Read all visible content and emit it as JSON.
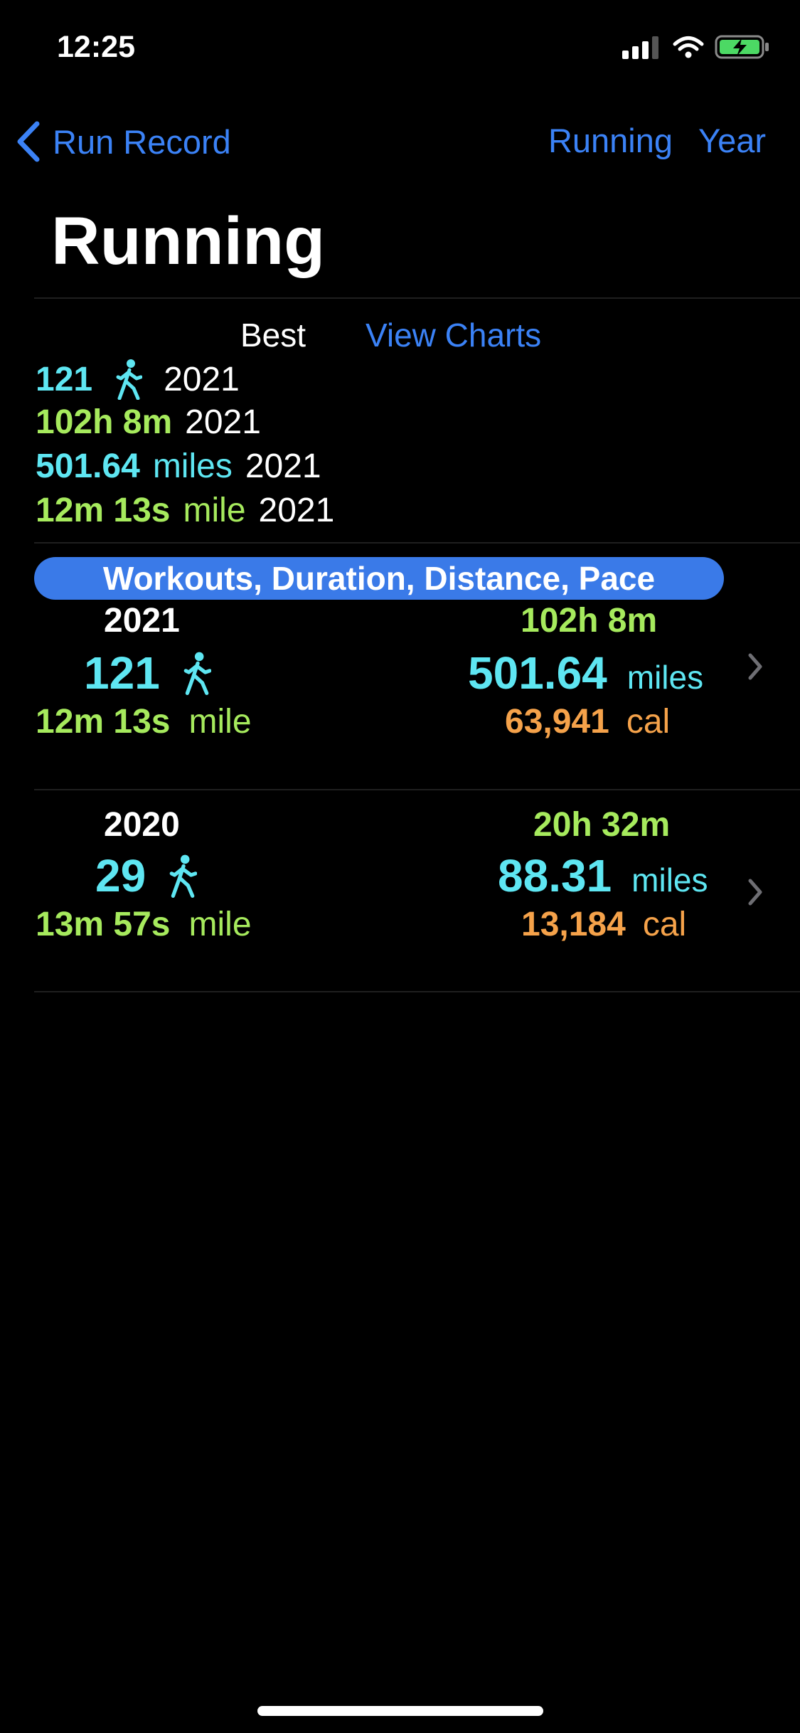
{
  "status_bar": {
    "time": "12:25"
  },
  "nav": {
    "back_label": "Run Record",
    "right_items": [
      "Running",
      "Year"
    ]
  },
  "page_title": "Running",
  "best": {
    "heading": "Best",
    "view_charts": "View Charts",
    "workouts": {
      "value": "121",
      "year": "2021"
    },
    "duration": {
      "value": "102h 8m",
      "year": "2021"
    },
    "distance": {
      "value": "501.64",
      "unit": "miles",
      "year": "2021"
    },
    "pace": {
      "value": "12m 13s",
      "unit": "mile",
      "year": "2021"
    }
  },
  "section_header": "Workouts, Duration, Distance, Pace",
  "years": [
    {
      "year": "2021",
      "workouts": "121",
      "duration": "102h 8m",
      "distance": "501.64",
      "distance_unit": "miles",
      "pace": "12m 13s",
      "pace_unit": "mile",
      "calories": "63,941",
      "cal_unit": "cal"
    },
    {
      "year": "2020",
      "workouts": "29",
      "duration": "20h 32m",
      "distance": "88.31",
      "distance_unit": "miles",
      "pace": "13m 57s",
      "pace_unit": "mile",
      "calories": "13,184",
      "cal_unit": "cal"
    }
  ],
  "colors": {
    "accent": "#3b82f6",
    "workouts": "#5ee6f2",
    "duration": "#a6ea5d",
    "calories": "#f5a24a"
  },
  "icons": {
    "workout": "walking-figure-icon",
    "chevron": "chevron-right-icon",
    "back": "chevron-left-icon"
  }
}
